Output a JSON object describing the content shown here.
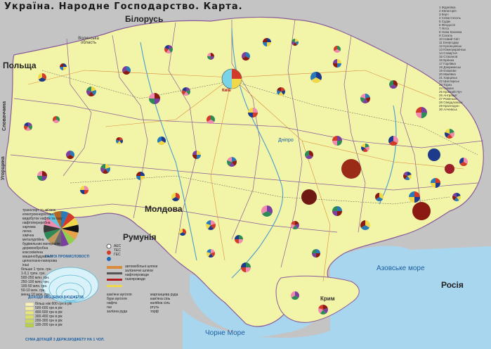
{
  "title": "Україна.     Народне Господарство. Карта.",
  "countries": {
    "belarus": "Білорусь",
    "poland": "Польща",
    "moldova": "Молдова",
    "romania": "Румунія",
    "russia": "Росія",
    "slovakia": "Словаччина",
    "hungary": "Угорщина"
  },
  "seas": {
    "black_sea": "Чорне Море",
    "azov_sea": "Азовське море"
  },
  "places": {
    "kyiv": "Київ",
    "dnipro": "Дніпро",
    "crimea": "Крим",
    "volyn": "Волинська область"
  },
  "legend": {
    "industry_title": "ГАЛУЗІ ПРОМИСЛОВОСТІ",
    "industries": [
      "транспорт та зв'язок",
      "електроенергетика",
      "видобуток нафти та газу",
      "нафтопереробна",
      "харчова",
      "легка",
      "хімічна",
      "металургійна",
      "будівельних матеріалів",
      "деревообробна",
      "коксохімічна",
      "машинобудування",
      "целюлозно-паперова",
      "інші"
    ],
    "budget_title": "ДОХОДИ МІСЦЕВИХ БЮДЖЕТІВ",
    "budget_sizes": [
      "більше 1 трлн. грн.",
      "1-0,1 трлн. грн.",
      "500-250 млн. грн.",
      "250-100 млн. грн.",
      "100-50 млн. грн.",
      "50-10 млн. грн.",
      "менш 10 млн. грн."
    ],
    "subsidy_title": "СУМА ДОТАЦІЙ З ДЕРЖ.БЮДЖЕТУ НА 1 ЧОЛ.",
    "subsidy_classes": [
      "більш ніж 600 грн в рік",
      "500-600 грн в рік",
      "400-500 грн в рік",
      "300-400 грн в рік",
      "200-300 грн в рік",
      "100-200 грн в рік"
    ],
    "energy": [
      "АЕС",
      "ТЕС",
      "ГЕС"
    ],
    "minerals": [
      "кам'яне вугілля",
      "буре вугілля",
      "нафта",
      "газ",
      "залізна руда",
      "марганцева руда",
      "кам'яна сіль",
      "калійна сіль",
      "ртуть",
      "торф"
    ],
    "pipelines": [
      "автомобільні шляхи",
      "залізничні шляхи",
      "нафтопроводи",
      "газопроводи"
    ]
  },
  "key_list": [
    "1 Жданівка",
    "2 Євпаторія",
    "3 Керч",
    "4 Севастополь",
    "5 Судак",
    "6 Феодосія",
    "7 Ялта",
    "8 Нова Каховка",
    "9 Сокаль",
    "10 Новий Світ",
    "11 Енергодар",
    "12 Кузнецовськ",
    "13 Южноукраїнськ",
    "14 Славутич",
    "15 Стаханов",
    "16 Брянка",
    "17 Горлівка",
    "18 Дзержинськ",
    "19 Єнакієве",
    "20 Макіївка",
    "21 Харцизьк",
    "22 Шахтарськ",
    "23 Торез",
    "24 Сніжне",
    "25 Красний Луч",
    "26 Антрацит",
    "27 Ровеньки",
    "28 Свердловськ",
    "29 Краснодон",
    "30 Алчевськ"
  ],
  "colors": {
    "ukraine_fill": "#f2f5a8",
    "neighbor_fill": "#bfbfbf",
    "sea": "#a9d6ef",
    "border": "#8a5a9a",
    "road": "#d98a3a"
  }
}
